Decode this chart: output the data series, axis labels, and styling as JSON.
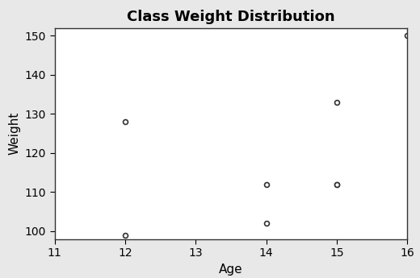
{
  "title": "Class Weight Distribution",
  "xlabel": "Age",
  "ylabel": "Weight",
  "x": [
    12,
    12,
    14,
    14,
    15,
    15,
    15,
    16
  ],
  "y": [
    128,
    99,
    112,
    102,
    133,
    112,
    112,
    150
  ],
  "xlim": [
    11,
    16
  ],
  "ylim": [
    98,
    152
  ],
  "xticks": [
    11,
    12,
    13,
    14,
    15,
    16
  ],
  "yticks": [
    100,
    110,
    120,
    130,
    140,
    150
  ],
  "marker": "o",
  "marker_size": 18,
  "marker_facecolor": "white",
  "marker_edgecolor": "#333333",
  "marker_linewidth": 1.2,
  "figure_facecolor": "#e8e8e8",
  "axes_facecolor": "#ffffff",
  "title_fontsize": 13,
  "label_fontsize": 11,
  "tick_fontsize": 10,
  "spine_color": "#333333",
  "spine_linewidth": 1.0
}
